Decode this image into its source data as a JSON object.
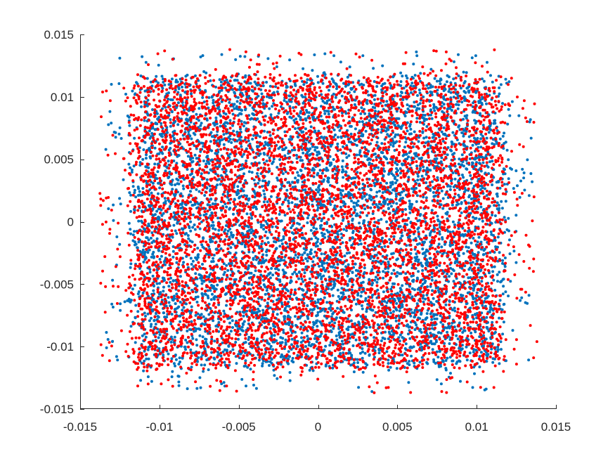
{
  "chart_data": {
    "type": "scatter",
    "title": "",
    "xlabel": "",
    "ylabel": "",
    "xlim": [
      -0.015,
      0.015
    ],
    "ylim": [
      -0.015,
      0.015
    ],
    "xticks": [
      -0.015,
      -0.01,
      -0.005,
      0,
      0.005,
      0.01,
      0.015
    ],
    "yticks": [
      -0.015,
      -0.01,
      -0.005,
      0,
      0.005,
      0.01,
      0.015
    ],
    "xtick_labels": [
      "-0.015",
      "-0.01",
      "-0.005",
      "0",
      "0.005",
      "0.01",
      "0.015"
    ],
    "ytick_labels": [
      "-0.015",
      "-0.01",
      "-0.005",
      "0",
      "0.005",
      "0.01",
      "0.015"
    ],
    "grid": false,
    "legend": "none",
    "series": [
      {
        "color": "#0072BD",
        "point_count": 6000,
        "x_range": [
          -0.0135,
          0.0135
        ],
        "y_range": [
          -0.0135,
          0.0135
        ],
        "distribution": "approximately uniform over square [-0.0115, 0.0115] x [-0.0115, 0.0115] with sparse scatter to ±0.0135",
        "sample_points": [
          [
            -0.0125,
            0.0131
          ],
          [
            -0.0074,
            0.0132
          ],
          [
            0.0062,
            0.0136
          ],
          [
            0.0135,
            0.0032
          ],
          [
            -0.013,
            -0.0066
          ],
          [
            0.0034,
            -0.0136
          ],
          [
            0.0106,
            -0.0134
          ],
          [
            -0.0074,
            -0.0133
          ],
          [
            0.0133,
            -0.0059
          ],
          [
            -0.0129,
            0.0001
          ],
          [
            -0.0127,
            -0.0108
          ],
          [
            0.001,
            0.0133
          ]
        ]
      },
      {
        "color": "#FF0000",
        "point_count": 6000,
        "x_range": [
          -0.0137,
          0.0138
        ],
        "y_range": [
          -0.0137,
          0.0137
        ],
        "distribution": "approximately uniform over square [-0.0115, 0.0115] x [-0.0115, 0.0115] with sparse scatter to ±0.0137",
        "sample_points": [
          [
            -0.0137,
            0.0013
          ],
          [
            0.0138,
            -0.0096
          ],
          [
            0.013,
            0.0097
          ],
          [
            -0.0134,
            -0.0052
          ],
          [
            0.0073,
            0.0137
          ],
          [
            0.0078,
            -0.0136
          ],
          [
            -0.0074,
            0.001
          ],
          [
            -0.0131,
            0.0097
          ],
          [
            0.0043,
            -0.0133
          ],
          [
            -0.0012,
            0.0135
          ],
          [
            0.0122,
            0.0115
          ],
          [
            -0.0126,
            -0.0052
          ]
        ]
      }
    ]
  }
}
